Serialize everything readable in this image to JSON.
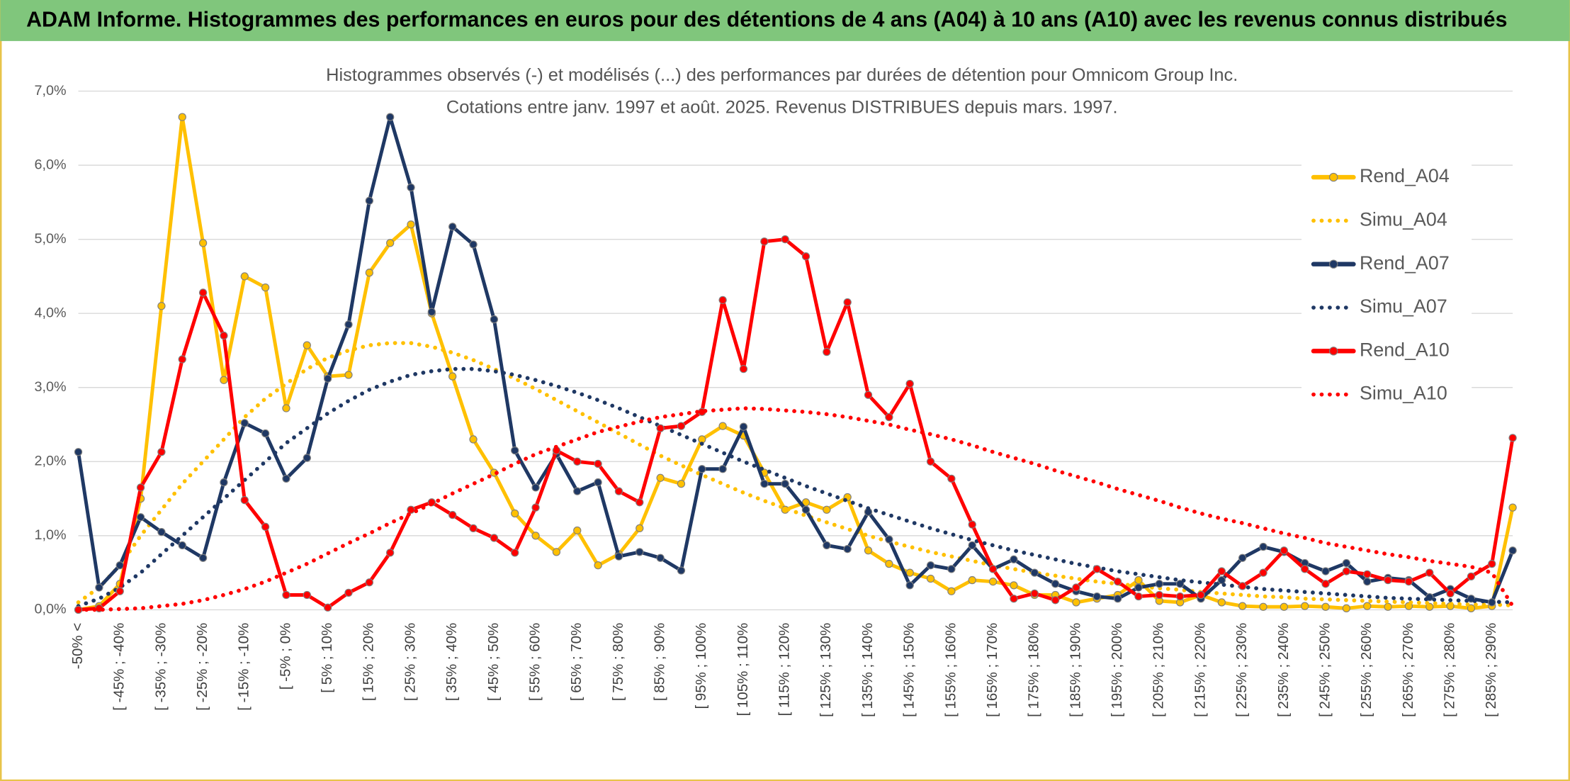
{
  "header": {
    "title": "ADAM Informe. Histogrammes des performances en euros pour des détentions de 4 ans (A04) à 10 ans (A10) avec les revenus connus distribués"
  },
  "chart_data": {
    "type": "line",
    "title": "Histogrammes observés (-) et modélisés (...) des performances par durées de détention pour Omnicom Group Inc.",
    "subtitle": "Cotations entre janv. 1997 et août. 2025. Revenus DISTRIBUES depuis mars. 1997.",
    "categories": [
      "-50% <",
      null,
      "[ -45% ; -40%",
      null,
      "[ -35% ; -30%",
      null,
      "[ -25% ; -20%",
      null,
      "[ -15% ; -10%",
      null,
      "[ -5% ; 0%",
      null,
      "[ 5% ; 10%",
      null,
      "[ 15% ; 20%",
      null,
      "[ 25% ; 30%",
      null,
      "[ 35% ; 40%",
      null,
      "[ 45% ; 50%",
      null,
      "[ 55% ; 60%",
      null,
      "[ 65% ; 70%",
      null,
      "[ 75% ; 80%",
      null,
      "[ 85% ; 90%",
      null,
      "[ 95% ; 100%",
      null,
      "[ 105% ; 110%",
      null,
      "[ 115% ; 120%",
      null,
      "[ 125% ; 130%",
      null,
      "[ 135% ; 140%",
      null,
      "[ 145% ; 150%",
      null,
      "[ 155% ; 160%",
      null,
      "[ 165% ; 170%",
      null,
      "[ 175% ; 180%",
      null,
      "[ 185% ; 190%",
      null,
      "[ 195% ; 200%",
      null,
      "[ 205% ; 210%",
      null,
      "[ 215% ; 220%",
      null,
      "[ 225% ; 230%",
      null,
      "[ 235% ; 240%",
      null,
      "[ 245% ; 250%",
      null,
      "[ 255% ; 260%",
      null,
      "[ 265% ; 270%",
      null,
      "[ 275% ; 280%",
      null,
      "[ 285% ; 290%",
      null
    ],
    "series": [
      {
        "name": "Rend_A04",
        "color": "#ffc000",
        "line_style": "solid",
        "markers": true,
        "values": [
          0,
          0.05,
          0.35,
          1.5,
          4.1,
          6.65,
          4.95,
          3.1,
          4.5,
          4.35,
          2.72,
          3.57,
          3.15,
          3.17,
          4.55,
          4.95,
          5.2,
          4.0,
          3.15,
          2.3,
          1.85,
          1.3,
          1.0,
          0.78,
          1.07,
          0.6,
          0.75,
          1.1,
          1.78,
          1.7,
          2.3,
          2.48,
          2.35,
          1.85,
          1.35,
          1.45,
          1.35,
          1.52,
          0.8,
          0.62,
          0.5,
          0.42,
          0.25,
          0.4,
          0.38,
          0.33,
          0.2,
          0.2,
          0.1,
          0.15,
          0.2,
          0.4,
          0.12,
          0.1,
          0.2,
          0.1,
          0.05,
          0.04,
          0.04,
          0.05,
          0.04,
          0.02,
          0.05,
          0.04,
          0.05,
          0.04,
          0.05,
          0.02,
          0.05,
          1.38
        ]
      },
      {
        "name": "Simu_A04",
        "color": "#ffc000",
        "line_style": "dotted",
        "markers": false,
        "values": [
          0.1,
          0.3,
          0.6,
          1.0,
          1.35,
          1.7,
          2.0,
          2.3,
          2.6,
          2.85,
          3.05,
          3.25,
          3.4,
          3.5,
          3.57,
          3.6,
          3.6,
          3.55,
          3.47,
          3.37,
          3.25,
          3.12,
          2.98,
          2.83,
          2.68,
          2.53,
          2.38,
          2.23,
          2.08,
          1.95,
          1.82,
          1.7,
          1.58,
          1.47,
          1.37,
          1.27,
          1.18,
          1.09,
          1.0,
          0.92,
          0.85,
          0.78,
          0.72,
          0.66,
          0.6,
          0.55,
          0.5,
          0.46,
          0.42,
          0.38,
          0.35,
          0.32,
          0.29,
          0.27,
          0.24,
          0.22,
          0.2,
          0.18,
          0.17,
          0.15,
          0.14,
          0.13,
          0.12,
          0.11,
          0.1,
          0.09,
          0.08,
          0.07,
          0.07,
          0.06
        ]
      },
      {
        "name": "Rend_A07",
        "color": "#1f3864",
        "line_style": "solid",
        "markers": true,
        "values": [
          2.13,
          0.3,
          0.6,
          1.25,
          1.05,
          0.87,
          0.7,
          1.72,
          2.52,
          2.38,
          1.77,
          2.05,
          3.12,
          3.85,
          5.52,
          6.65,
          5.7,
          4.02,
          5.17,
          4.93,
          3.92,
          2.15,
          1.65,
          2.1,
          1.6,
          1.72,
          0.72,
          0.78,
          0.7,
          0.53,
          1.9,
          1.9,
          2.47,
          1.7,
          1.7,
          1.35,
          0.87,
          0.82,
          1.32,
          0.95,
          0.33,
          0.6,
          0.55,
          0.87,
          0.55,
          0.68,
          0.5,
          0.35,
          0.25,
          0.18,
          0.15,
          0.3,
          0.35,
          0.35,
          0.15,
          0.4,
          0.7,
          0.85,
          0.78,
          0.63,
          0.52,
          0.63,
          0.38,
          0.43,
          0.4,
          0.17,
          0.28,
          0.15,
          0.1,
          0.8
        ]
      },
      {
        "name": "Simu_A07",
        "color": "#1f3864",
        "line_style": "dotted",
        "markers": false,
        "values": [
          0.05,
          0.15,
          0.3,
          0.5,
          0.75,
          1.0,
          1.25,
          1.5,
          1.75,
          2.0,
          2.25,
          2.45,
          2.65,
          2.82,
          2.97,
          3.08,
          3.17,
          3.22,
          3.25,
          3.25,
          3.22,
          3.17,
          3.1,
          3.02,
          2.93,
          2.83,
          2.72,
          2.6,
          2.48,
          2.36,
          2.24,
          2.12,
          2.0,
          1.89,
          1.78,
          1.67,
          1.57,
          1.47,
          1.37,
          1.28,
          1.19,
          1.1,
          1.02,
          0.94,
          0.87,
          0.8,
          0.74,
          0.68,
          0.62,
          0.57,
          0.52,
          0.48,
          0.44,
          0.4,
          0.37,
          0.34,
          0.31,
          0.28,
          0.26,
          0.24,
          0.22,
          0.2,
          0.18,
          0.16,
          0.15,
          0.14,
          0.13,
          0.12,
          0.11,
          0.1
        ]
      },
      {
        "name": "Rend_A10",
        "color": "#ff0000",
        "line_style": "solid",
        "markers": true,
        "values": [
          0,
          0.02,
          0.25,
          1.65,
          2.13,
          3.38,
          4.28,
          3.7,
          1.48,
          1.12,
          0.2,
          0.2,
          0.03,
          0.23,
          0.37,
          0.77,
          1.35,
          1.45,
          1.28,
          1.1,
          0.97,
          0.77,
          1.38,
          2.15,
          2.0,
          1.97,
          1.6,
          1.45,
          2.45,
          2.48,
          2.67,
          4.18,
          3.25,
          4.97,
          5.0,
          4.77,
          3.48,
          4.15,
          2.9,
          2.6,
          3.05,
          2.0,
          1.77,
          1.15,
          0.55,
          0.15,
          0.22,
          0.13,
          0.3,
          0.55,
          0.38,
          0.18,
          0.2,
          0.18,
          0.2,
          0.52,
          0.32,
          0.5,
          0.8,
          0.55,
          0.35,
          0.52,
          0.48,
          0.4,
          0.38,
          0.5,
          0.22,
          0.45,
          0.62,
          2.32
        ]
      },
      {
        "name": "Simu_A10",
        "color": "#ff0000",
        "line_style": "dotted",
        "markers": false,
        "values": [
          0,
          0,
          0.01,
          0.02,
          0.05,
          0.08,
          0.13,
          0.2,
          0.28,
          0.38,
          0.5,
          0.62,
          0.76,
          0.9,
          1.03,
          1.17,
          1.3,
          1.43,
          1.57,
          1.7,
          1.83,
          1.97,
          2.1,
          2.2,
          2.3,
          2.4,
          2.47,
          2.54,
          2.6,
          2.64,
          2.68,
          2.7,
          2.72,
          2.71,
          2.69,
          2.67,
          2.64,
          2.6,
          2.55,
          2.5,
          2.43,
          2.37,
          2.3,
          2.22,
          2.13,
          2.05,
          1.97,
          1.88,
          1.8,
          1.72,
          1.63,
          1.55,
          1.47,
          1.38,
          1.3,
          1.23,
          1.17,
          1.1,
          1.03,
          0.97,
          0.9,
          0.85,
          0.8,
          0.75,
          0.71,
          0.66,
          0.62,
          0.58,
          0.5,
          0.05
        ]
      }
    ],
    "ylim": [
      0,
      7
    ],
    "yticks": [
      {
        "value": 0,
        "label": "0,0%"
      },
      {
        "value": 1,
        "label": "1,0%"
      },
      {
        "value": 2,
        "label": "2,0%"
      },
      {
        "value": 3,
        "label": "3,0%"
      },
      {
        "value": 4,
        "label": "4,0%"
      },
      {
        "value": 5,
        "label": "5,0%"
      },
      {
        "value": 6,
        "label": "6,0%"
      },
      {
        "value": 7,
        "label": "7,0%"
      }
    ],
    "grid": true,
    "legend": "right"
  }
}
